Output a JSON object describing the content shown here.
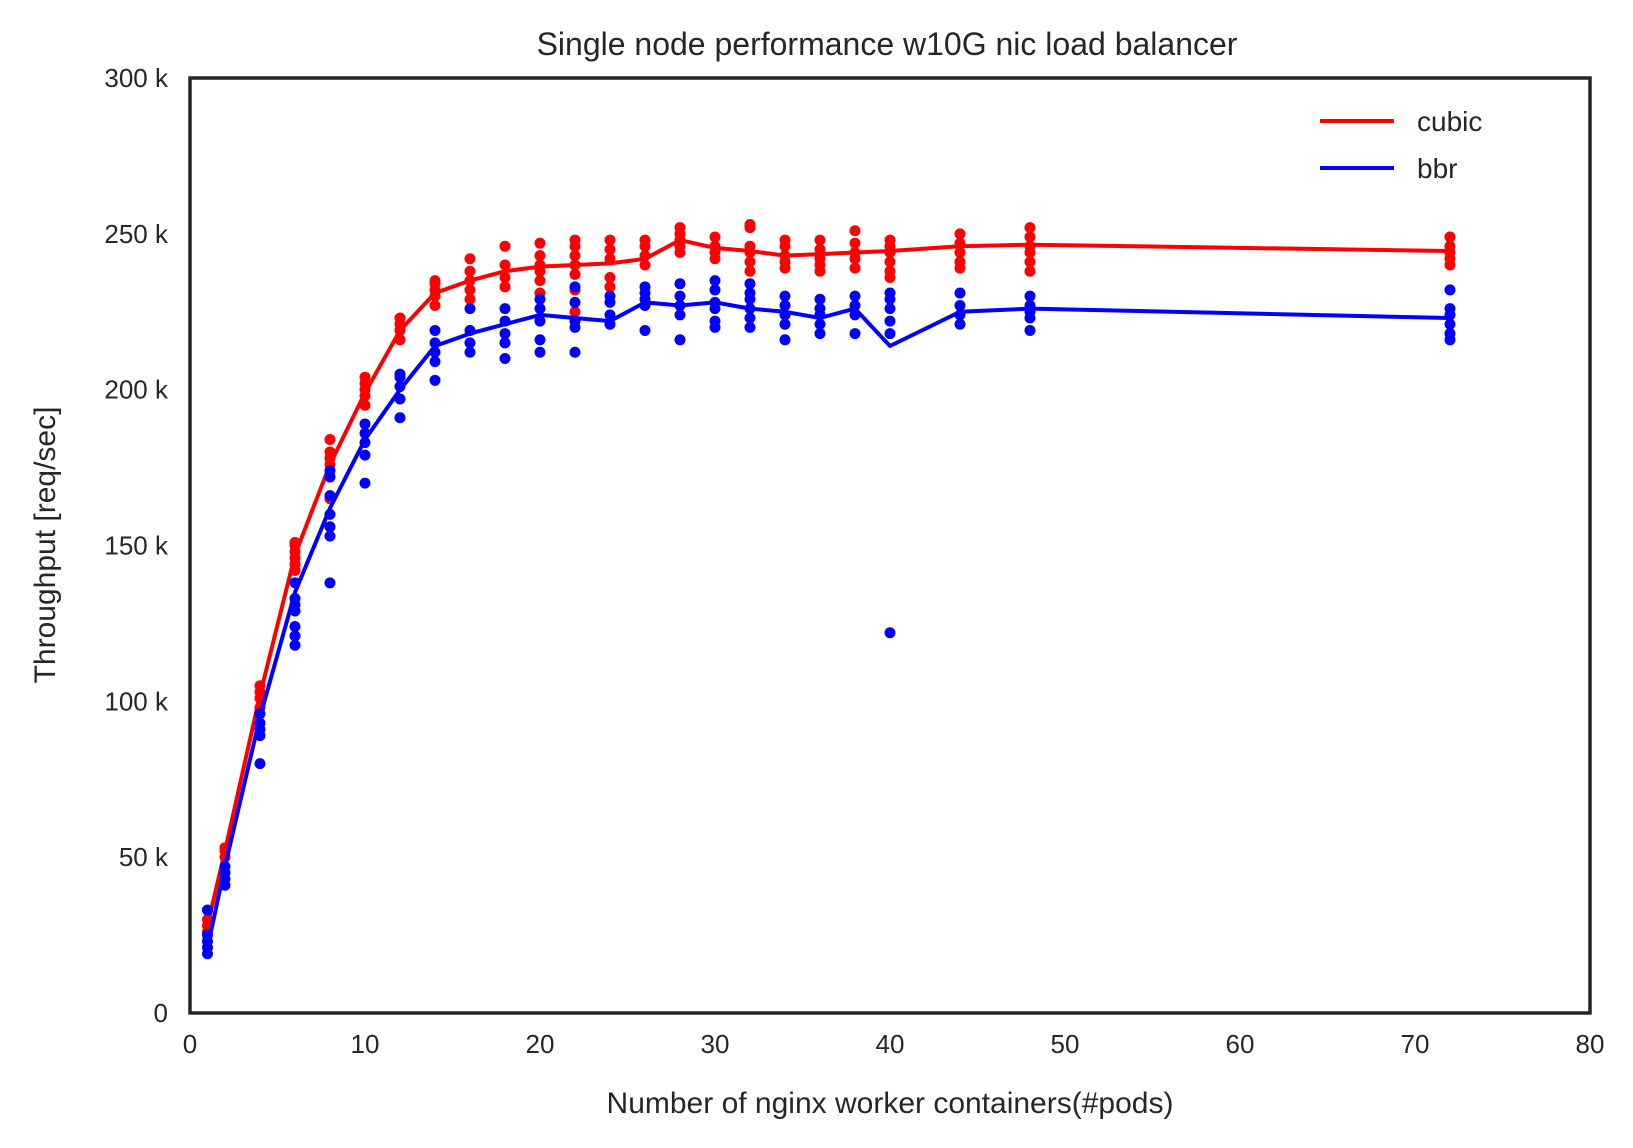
{
  "chart_data": {
    "type": "line",
    "title": "Single node performance w10G nic load balancer",
    "xlabel": "Number of nginx worker containers(#pods)",
    "ylabel": "Throughput [req/sec]",
    "xlim": [
      0,
      80
    ],
    "ylim": [
      0,
      300000
    ],
    "xticks": [
      {
        "value": 0,
        "label": "0"
      },
      {
        "value": 10,
        "label": "10"
      },
      {
        "value": 20,
        "label": "20"
      },
      {
        "value": 30,
        "label": "30"
      },
      {
        "value": 40,
        "label": "40"
      },
      {
        "value": 50,
        "label": "50"
      },
      {
        "value": 60,
        "label": "60"
      },
      {
        "value": 70,
        "label": "70"
      },
      {
        "value": 80,
        "label": "80"
      }
    ],
    "yticks": [
      {
        "value": 0,
        "label": "0"
      },
      {
        "value": 50000,
        "label": "50 k"
      },
      {
        "value": 100000,
        "label": "100 k"
      },
      {
        "value": 150000,
        "label": "150 k"
      },
      {
        "value": 200000,
        "label": "200 k"
      },
      {
        "value": 250000,
        "label": "250 k"
      },
      {
        "value": 300000,
        "label": "300 k"
      }
    ],
    "grid": false,
    "legend_position": "top-right",
    "series": [
      {
        "name": "cubic",
        "color": "#ff0000",
        "line": [
          [
            1,
            28000
          ],
          [
            2,
            52000
          ],
          [
            4,
            102000
          ],
          [
            6,
            147000
          ],
          [
            8,
            176000
          ],
          [
            10,
            199000
          ],
          [
            12,
            219000
          ],
          [
            14,
            231000
          ],
          [
            16,
            235000
          ],
          [
            18,
            238000
          ],
          [
            20,
            239500
          ],
          [
            22,
            240000
          ],
          [
            24,
            240500
          ],
          [
            26,
            242000
          ],
          [
            28,
            248000
          ],
          [
            30,
            245500
          ],
          [
            32,
            244500
          ],
          [
            34,
            243000
          ],
          [
            36,
            243500
          ],
          [
            38,
            244000
          ],
          [
            40,
            244500
          ],
          [
            44,
            246000
          ],
          [
            48,
            246500
          ],
          [
            72,
            244500
          ]
        ],
        "points": [
          [
            1,
            26000
          ],
          [
            1,
            28000
          ],
          [
            1,
            30000
          ],
          [
            1,
            33000
          ],
          [
            2,
            50000
          ],
          [
            2,
            52000
          ],
          [
            2,
            53000
          ],
          [
            4,
            98000
          ],
          [
            4,
            101000
          ],
          [
            4,
            103000
          ],
          [
            4,
            105000
          ],
          [
            6,
            142000
          ],
          [
            6,
            144000
          ],
          [
            6,
            146000
          ],
          [
            6,
            148000
          ],
          [
            6,
            150000
          ],
          [
            6,
            151000
          ],
          [
            8,
            165000
          ],
          [
            8,
            172000
          ],
          [
            8,
            176000
          ],
          [
            8,
            178000
          ],
          [
            8,
            180000
          ],
          [
            8,
            184000
          ],
          [
            10,
            195000
          ],
          [
            10,
            198000
          ],
          [
            10,
            200000
          ],
          [
            10,
            202000
          ],
          [
            10,
            204000
          ],
          [
            12,
            216000
          ],
          [
            12,
            219000
          ],
          [
            12,
            221000
          ],
          [
            12,
            223000
          ],
          [
            14,
            227000
          ],
          [
            14,
            230000
          ],
          [
            14,
            232000
          ],
          [
            14,
            234000
          ],
          [
            14,
            235000
          ],
          [
            16,
            229000
          ],
          [
            16,
            232000
          ],
          [
            16,
            235000
          ],
          [
            16,
            238000
          ],
          [
            16,
            242000
          ],
          [
            18,
            233000
          ],
          [
            18,
            236000
          ],
          [
            18,
            240000
          ],
          [
            18,
            246000
          ],
          [
            20,
            231000
          ],
          [
            20,
            235000
          ],
          [
            20,
            238000
          ],
          [
            20,
            240000
          ],
          [
            20,
            243000
          ],
          [
            20,
            247000
          ],
          [
            22,
            222000
          ],
          [
            22,
            225000
          ],
          [
            22,
            232000
          ],
          [
            22,
            237000
          ],
          [
            22,
            240000
          ],
          [
            22,
            243000
          ],
          [
            22,
            246000
          ],
          [
            22,
            248000
          ],
          [
            24,
            233000
          ],
          [
            24,
            236000
          ],
          [
            24,
            242000
          ],
          [
            24,
            245000
          ],
          [
            24,
            248000
          ],
          [
            26,
            240000
          ],
          [
            26,
            243000
          ],
          [
            26,
            246000
          ],
          [
            26,
            248000
          ],
          [
            28,
            244000
          ],
          [
            28,
            246000
          ],
          [
            28,
            248000
          ],
          [
            28,
            250000
          ],
          [
            28,
            252000
          ],
          [
            30,
            242000
          ],
          [
            30,
            244000
          ],
          [
            30,
            246000
          ],
          [
            30,
            249000
          ],
          [
            32,
            238000
          ],
          [
            32,
            241000
          ],
          [
            32,
            244000
          ],
          [
            32,
            246000
          ],
          [
            32,
            253000
          ],
          [
            32,
            252000
          ],
          [
            34,
            239000
          ],
          [
            34,
            241000
          ],
          [
            34,
            243000
          ],
          [
            34,
            246000
          ],
          [
            34,
            248000
          ],
          [
            36,
            238000
          ],
          [
            36,
            240000
          ],
          [
            36,
            242000
          ],
          [
            36,
            245000
          ],
          [
            36,
            248000
          ],
          [
            38,
            239000
          ],
          [
            38,
            242000
          ],
          [
            38,
            244000
          ],
          [
            38,
            247000
          ],
          [
            38,
            251000
          ],
          [
            40,
            236000
          ],
          [
            40,
            238000
          ],
          [
            40,
            241000
          ],
          [
            40,
            244000
          ],
          [
            40,
            246000
          ],
          [
            40,
            248000
          ],
          [
            44,
            239000
          ],
          [
            44,
            241000
          ],
          [
            44,
            244000
          ],
          [
            44,
            247000
          ],
          [
            44,
            250000
          ],
          [
            48,
            238000
          ],
          [
            48,
            241000
          ],
          [
            48,
            244000
          ],
          [
            48,
            246000
          ],
          [
            48,
            249000
          ],
          [
            48,
            252000
          ],
          [
            72,
            240000
          ],
          [
            72,
            242000
          ],
          [
            72,
            244000
          ],
          [
            72,
            246000
          ],
          [
            72,
            249000
          ]
        ]
      },
      {
        "name": "bbr",
        "color": "#0000ff",
        "line": [
          [
            1,
            21000
          ],
          [
            2,
            47000
          ],
          [
            4,
            95000
          ],
          [
            6,
            135000
          ],
          [
            8,
            162000
          ],
          [
            10,
            184000
          ],
          [
            12,
            200000
          ],
          [
            14,
            214000
          ],
          [
            16,
            218000
          ],
          [
            18,
            221000
          ],
          [
            20,
            224000
          ],
          [
            22,
            223000
          ],
          [
            24,
            222000
          ],
          [
            26,
            228000
          ],
          [
            28,
            227000
          ],
          [
            30,
            228000
          ],
          [
            32,
            226000
          ],
          [
            34,
            225000
          ],
          [
            36,
            223000
          ],
          [
            38,
            226000
          ],
          [
            40,
            214000
          ],
          [
            44,
            225000
          ],
          [
            48,
            226000
          ],
          [
            72,
            223000
          ]
        ],
        "points": [
          [
            1,
            19000
          ],
          [
            1,
            21000
          ],
          [
            1,
            23000
          ],
          [
            1,
            25000
          ],
          [
            1,
            33000
          ],
          [
            2,
            41000
          ],
          [
            2,
            43000
          ],
          [
            2,
            45000
          ],
          [
            2,
            47000
          ],
          [
            4,
            80000
          ],
          [
            4,
            89000
          ],
          [
            4,
            91000
          ],
          [
            4,
            93000
          ],
          [
            4,
            96000
          ],
          [
            6,
            118000
          ],
          [
            6,
            121000
          ],
          [
            6,
            124000
          ],
          [
            6,
            129000
          ],
          [
            6,
            131000
          ],
          [
            6,
            133000
          ],
          [
            6,
            138000
          ],
          [
            8,
            138000
          ],
          [
            8,
            153000
          ],
          [
            8,
            156000
          ],
          [
            8,
            160000
          ],
          [
            8,
            166000
          ],
          [
            8,
            172000
          ],
          [
            8,
            174000
          ],
          [
            10,
            170000
          ],
          [
            10,
            179000
          ],
          [
            10,
            183000
          ],
          [
            10,
            186000
          ],
          [
            10,
            189000
          ],
          [
            12,
            191000
          ],
          [
            12,
            197000
          ],
          [
            12,
            201000
          ],
          [
            12,
            204000
          ],
          [
            12,
            205000
          ],
          [
            14,
            203000
          ],
          [
            14,
            209000
          ],
          [
            14,
            212000
          ],
          [
            14,
            215000
          ],
          [
            14,
            219000
          ],
          [
            16,
            212000
          ],
          [
            16,
            215000
          ],
          [
            16,
            219000
          ],
          [
            16,
            226000
          ],
          [
            18,
            210000
          ],
          [
            18,
            215000
          ],
          [
            18,
            218000
          ],
          [
            18,
            222000
          ],
          [
            18,
            226000
          ],
          [
            20,
            212000
          ],
          [
            20,
            216000
          ],
          [
            20,
            222000
          ],
          [
            20,
            226000
          ],
          [
            20,
            229000
          ],
          [
            22,
            212000
          ],
          [
            22,
            220000
          ],
          [
            22,
            222000
          ],
          [
            22,
            228000
          ],
          [
            22,
            233000
          ],
          [
            24,
            221000
          ],
          [
            24,
            224000
          ],
          [
            24,
            228000
          ],
          [
            24,
            230000
          ],
          [
            26,
            219000
          ],
          [
            26,
            227000
          ],
          [
            26,
            229000
          ],
          [
            26,
            231000
          ],
          [
            26,
            233000
          ],
          [
            28,
            216000
          ],
          [
            28,
            224000
          ],
          [
            28,
            227000
          ],
          [
            28,
            230000
          ],
          [
            28,
            234000
          ],
          [
            30,
            220000
          ],
          [
            30,
            222000
          ],
          [
            30,
            226000
          ],
          [
            30,
            228000
          ],
          [
            30,
            232000
          ],
          [
            30,
            235000
          ],
          [
            32,
            220000
          ],
          [
            32,
            223000
          ],
          [
            32,
            226000
          ],
          [
            32,
            229000
          ],
          [
            32,
            231000
          ],
          [
            32,
            234000
          ],
          [
            34,
            216000
          ],
          [
            34,
            221000
          ],
          [
            34,
            224000
          ],
          [
            34,
            227000
          ],
          [
            34,
            230000
          ],
          [
            36,
            218000
          ],
          [
            36,
            221000
          ],
          [
            36,
            224000
          ],
          [
            36,
            226000
          ],
          [
            36,
            229000
          ],
          [
            38,
            218000
          ],
          [
            38,
            224000
          ],
          [
            38,
            227000
          ],
          [
            38,
            230000
          ],
          [
            40,
            122000
          ],
          [
            40,
            218000
          ],
          [
            40,
            222000
          ],
          [
            40,
            226000
          ],
          [
            40,
            229000
          ],
          [
            40,
            231000
          ],
          [
            44,
            221000
          ],
          [
            44,
            224000
          ],
          [
            44,
            227000
          ],
          [
            44,
            231000
          ],
          [
            48,
            219000
          ],
          [
            48,
            223000
          ],
          [
            48,
            225000
          ],
          [
            48,
            227000
          ],
          [
            48,
            230000
          ],
          [
            72,
            216000
          ],
          [
            72,
            218000
          ],
          [
            72,
            221000
          ],
          [
            72,
            224000
          ],
          [
            72,
            226000
          ],
          [
            72,
            232000
          ]
        ]
      }
    ]
  }
}
